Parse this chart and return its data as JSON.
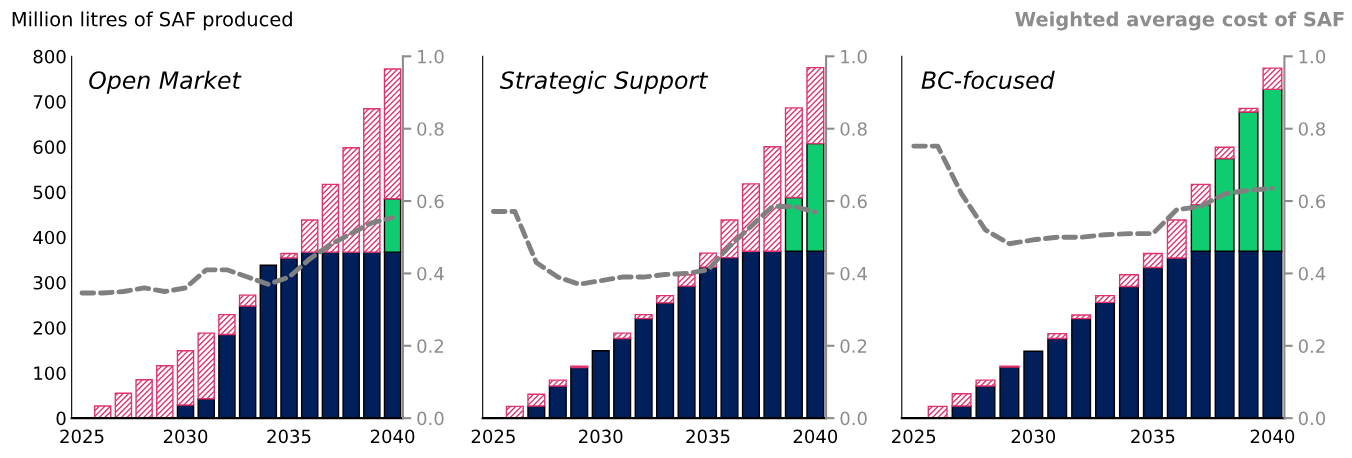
{
  "chart_data": [
    {
      "type": "bar",
      "stacked": true,
      "title": "Open Market",
      "ylabel": "Million litres of SAF produced",
      "x": [
        2025,
        2026,
        2027,
        2028,
        2029,
        2030,
        2031,
        2032,
        2033,
        2034,
        2035,
        2036,
        2037,
        2038,
        2039,
        2040
      ],
      "series": [
        {
          "color": "#001f5b",
          "values": [
            0,
            0,
            0,
            0,
            0,
            29,
            43,
            185,
            248,
            338,
            354,
            367,
            367,
            367,
            367,
            367
          ]
        },
        {
          "color": "#10cc70",
          "values": [
            0,
            0,
            0,
            0,
            0,
            0,
            0,
            0,
            0,
            0,
            0,
            0,
            0,
            0,
            0,
            118
          ]
        },
        {
          "color": "#e0336e",
          "values": [
            0,
            27,
            55,
            85,
            116,
            120,
            145,
            44,
            24,
            0,
            10,
            71,
            150,
            231,
            317,
            287
          ]
        },
        {
          "type": "line",
          "axis": "y2",
          "color": "#808080",
          "line_style": "dashed",
          "values": [
            0.346,
            0.346,
            0.35,
            0.36,
            0.35,
            0.36,
            0.41,
            0.41,
            0.39,
            0.37,
            0.39,
            0.44,
            0.48,
            0.51,
            0.54,
            0.554
          ]
        }
      ],
      "xlim": [
        2024.5,
        2040.5
      ],
      "xticks": [
        2025,
        2030,
        2035,
        2040
      ],
      "ylim": [
        0,
        800
      ],
      "yticks": [
        0,
        100,
        200,
        300,
        400,
        500,
        600,
        700,
        800
      ],
      "y2lim": [
        0,
        1
      ],
      "y2ticks": [
        {
          "value": 0,
          "label": "0.0"
        },
        {
          "value": 0.2,
          "label": "0.2"
        },
        {
          "value": 0.4,
          "label": "0.4"
        },
        {
          "value": 0.6,
          "label": "0.6"
        },
        {
          "value": 0.8,
          "label": "0.8"
        },
        {
          "value": 1,
          "label": "1.0"
        }
      ],
      "grid": false,
      "legend": false,
      "marker": "none"
    },
    {
      "type": "bar",
      "stacked": true,
      "title": "Strategic Support",
      "x": [
        2025,
        2026,
        2027,
        2028,
        2029,
        2030,
        2031,
        2032,
        2033,
        2034,
        2035,
        2036,
        2037,
        2038,
        2039,
        2040
      ],
      "series": [
        {
          "color": "#001f5b",
          "values": [
            0,
            0,
            27,
            71,
            112,
            149,
            176,
            220,
            255,
            292,
            334,
            355,
            369,
            369,
            369,
            369
          ]
        },
        {
          "color": "#10cc70",
          "values": [
            0,
            0,
            0,
            0,
            0,
            0,
            0,
            0,
            0,
            0,
            0,
            0,
            0,
            0,
            119,
            238
          ]
        },
        {
          "color": "#e0336e",
          "values": [
            0,
            26,
            26,
            13,
            3,
            0,
            12,
            9,
            16,
            25,
            31,
            83,
            149,
            231,
            198,
            168
          ]
        },
        {
          "type": "line",
          "axis": "y2",
          "color": "#808080",
          "line_style": "dashed",
          "values": [
            0.571,
            0.571,
            0.43,
            0.39,
            0.37,
            0.38,
            0.39,
            0.39,
            0.397,
            0.4,
            0.41,
            0.475,
            0.53,
            0.585,
            0.585,
            0.57
          ]
        }
      ],
      "xlim": [
        2024.5,
        2040.5
      ],
      "xticks": [
        2025,
        2030,
        2035,
        2040
      ],
      "ylim": [
        0,
        800
      ],
      "tick_labels": [
        "x",
        "y2"
      ],
      "y2lim": [
        0,
        1
      ],
      "y2ticks": [
        {
          "value": 0,
          "label": "0.0"
        },
        {
          "value": 0.2,
          "label": "0.2"
        },
        {
          "value": 0.4,
          "label": "0.4"
        },
        {
          "value": 0.6,
          "label": "0.6"
        },
        {
          "value": 0.8,
          "label": "0.8"
        },
        {
          "value": 1,
          "label": "1.0"
        }
      ],
      "grid": false,
      "legend": false,
      "marker": "none"
    },
    {
      "type": "bar",
      "stacked": true,
      "title": "BC-focused",
      "y2label": "Weighted average cost of SAF",
      "x": [
        2025,
        2026,
        2027,
        2028,
        2029,
        2030,
        2031,
        2032,
        2033,
        2034,
        2035,
        2036,
        2037,
        2038,
        2039,
        2040
      ],
      "series": [
        {
          "color": "#001f5b",
          "values": [
            0,
            0,
            27,
            71,
            113,
            148,
            176,
            220,
            256,
            291,
            333,
            354,
            369,
            369,
            369,
            369
          ]
        },
        {
          "color": "#10cc70",
          "values": [
            0,
            0,
            0,
            0,
            0,
            0,
            0,
            0,
            0,
            0,
            0,
            0,
            103,
            205,
            308,
            358
          ]
        },
        {
          "color": "#e0336e",
          "values": [
            0,
            26,
            27,
            13,
            2,
            0,
            11,
            8,
            15,
            26,
            31,
            84,
            45,
            25,
            8,
            47
          ]
        },
        {
          "type": "line",
          "axis": "y2",
          "color": "#808080",
          "line_style": "dashed",
          "values": [
            0.752,
            0.752,
            0.62,
            0.52,
            0.482,
            0.493,
            0.5,
            0.5,
            0.507,
            0.51,
            0.51,
            0.576,
            0.585,
            0.62,
            0.63,
            0.635
          ]
        }
      ],
      "xlim": [
        2024.5,
        2040.5
      ],
      "xticks": [
        2025,
        2030,
        2035,
        2040
      ],
      "ylim": [
        0,
        800
      ],
      "tick_labels": [
        "x",
        "y2"
      ],
      "y2lim": [
        0,
        1
      ],
      "y2ticks": [
        {
          "value": 0,
          "label": "0.0"
        },
        {
          "value": 0.2,
          "label": "0.2"
        },
        {
          "value": 0.4,
          "label": "0.4"
        },
        {
          "value": 0.6,
          "label": "0.6"
        },
        {
          "value": 0.8,
          "label": "0.8"
        },
        {
          "value": 1,
          "label": "1.0"
        }
      ],
      "grid": false,
      "legend": false,
      "marker": "none"
    }
  ]
}
